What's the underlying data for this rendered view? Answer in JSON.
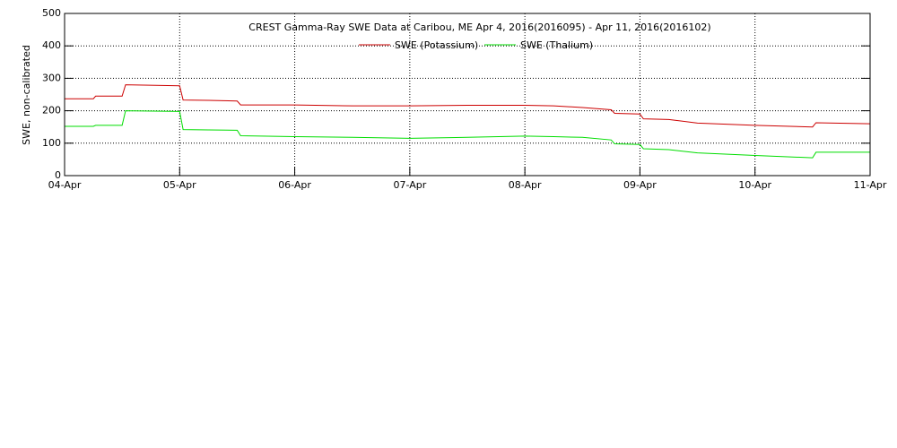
{
  "chart_data": {
    "type": "line",
    "title": "CREST Gamma-Ray SWE Data at Caribou, ME   Apr  4, 2016(2016095) - Apr 11, 2016(2016102)",
    "y_label": "SWE, non-calibrated",
    "x": [
      0,
      0.25,
      0.27,
      0.5,
      0.53,
      1.0,
      1.03,
      1.25,
      1.5,
      1.53,
      2,
      2.5,
      3,
      3.5,
      4,
      4.25,
      4.5,
      4.75,
      4.78,
      5,
      5.03,
      5.25,
      5.5,
      6,
      6.5,
      6.53,
      7
    ],
    "series": [
      {
        "name": "SWE (Potassium)",
        "color": "#cc0000",
        "values": [
          237,
          237,
          245,
          245,
          280,
          277,
          233,
          232,
          230,
          218,
          218,
          215,
          215,
          217,
          217,
          215,
          210,
          203,
          192,
          190,
          175,
          173,
          162,
          155,
          150,
          163,
          160
        ]
      },
      {
        "name": "SWE (Thalium)",
        "color": "#00dd00",
        "values": [
          152,
          152,
          155,
          155,
          200,
          198,
          142,
          141,
          140,
          123,
          120,
          118,
          115,
          118,
          122,
          120,
          118,
          110,
          98,
          96,
          83,
          80,
          70,
          62,
          55,
          72,
          72
        ]
      }
    ],
    "xlim": [
      0,
      7
    ],
    "xticks": [
      {
        "value": 0,
        "label": "04-Apr"
      },
      {
        "value": 1,
        "label": "05-Apr"
      },
      {
        "value": 2,
        "label": "06-Apr"
      },
      {
        "value": 3,
        "label": "07-Apr"
      },
      {
        "value": 4,
        "label": "08-Apr"
      },
      {
        "value": 5,
        "label": "09-Apr"
      },
      {
        "value": 6,
        "label": "10-Apr"
      },
      {
        "value": 7,
        "label": "11-Apr"
      }
    ],
    "ylim": [
      0,
      500
    ],
    "yticks": [
      0,
      100,
      200,
      300,
      400,
      500
    ],
    "grid": true
  }
}
